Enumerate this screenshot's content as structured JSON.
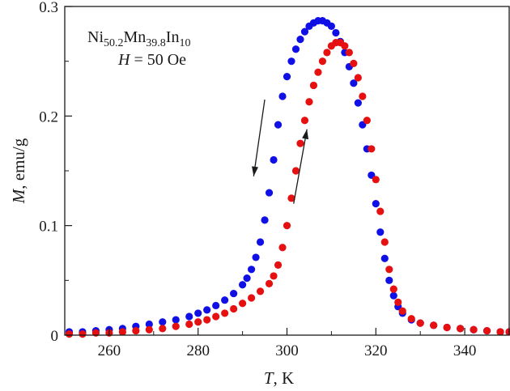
{
  "chart_data": {
    "type": "scatter",
    "xlabel": {
      "symbol": "T",
      "unit": ", K"
    },
    "ylabel": {
      "symbol": "M",
      "unit": ", emu/g"
    },
    "xlim": [
      250,
      350
    ],
    "ylim": [
      0,
      0.3
    ],
    "x_ticks": [
      260,
      280,
      300,
      320,
      340
    ],
    "x_tick_labels": [
      "260",
      "280",
      "300",
      "320",
      "340"
    ],
    "y_ticks": [
      0,
      0.1,
      0.2,
      0.3
    ],
    "y_tick_labels": [
      "0",
      "0.1",
      "0.2",
      "0.3"
    ],
    "grid": false,
    "legend": false,
    "annotation": {
      "formula": [
        {
          "text": "Ni",
          "sub": "50.2"
        },
        {
          "text": "Mn",
          "sub": "39.8"
        },
        {
          "text": "In",
          "sub": "10"
        }
      ],
      "field": {
        "symbol": "H",
        "text": " = 50 Oe"
      }
    },
    "arrows": [
      {
        "direction": "down",
        "x_from": 295,
        "y_from": 0.215,
        "x_to": 292.5,
        "y_to": 0.145
      },
      {
        "direction": "up",
        "x_from": 301.5,
        "y_from": 0.12,
        "x_to": 304.5,
        "y_to": 0.188
      }
    ],
    "series": [
      {
        "color": "#1010e6",
        "points": [
          [
            251,
            0.003
          ],
          [
            254,
            0.003
          ],
          [
            257,
            0.004
          ],
          [
            260,
            0.005
          ],
          [
            263,
            0.006
          ],
          [
            266,
            0.008
          ],
          [
            269,
            0.01
          ],
          [
            272,
            0.012
          ],
          [
            275,
            0.014
          ],
          [
            278,
            0.017
          ],
          [
            280,
            0.02
          ],
          [
            282,
            0.023
          ],
          [
            284,
            0.027
          ],
          [
            286,
            0.032
          ],
          [
            288,
            0.038
          ],
          [
            290,
            0.046
          ],
          [
            291,
            0.052
          ],
          [
            292,
            0.06
          ],
          [
            293,
            0.071
          ],
          [
            294,
            0.085
          ],
          [
            295,
            0.105
          ],
          [
            296,
            0.13
          ],
          [
            297,
            0.16
          ],
          [
            298,
            0.192
          ],
          [
            299,
            0.218
          ],
          [
            300,
            0.236
          ],
          [
            301,
            0.25
          ],
          [
            302,
            0.261
          ],
          [
            303,
            0.27
          ],
          [
            304,
            0.277
          ],
          [
            305,
            0.282
          ],
          [
            306,
            0.285
          ],
          [
            307,
            0.287
          ],
          [
            308,
            0.287
          ],
          [
            309,
            0.285
          ],
          [
            310,
            0.282
          ],
          [
            311,
            0.276
          ],
          [
            312,
            0.268
          ],
          [
            313,
            0.258
          ],
          [
            314,
            0.245
          ],
          [
            315,
            0.23
          ],
          [
            316,
            0.212
          ],
          [
            317,
            0.192
          ],
          [
            318,
            0.17
          ],
          [
            319,
            0.146
          ],
          [
            320,
            0.12
          ],
          [
            321,
            0.094
          ],
          [
            322,
            0.07
          ],
          [
            323,
            0.05
          ],
          [
            324,
            0.036
          ],
          [
            325,
            0.026
          ],
          [
            326,
            0.02
          ],
          [
            328,
            0.014
          ],
          [
            330,
            0.011
          ],
          [
            333,
            0.009
          ],
          [
            336,
            0.007
          ],
          [
            339,
            0.006
          ],
          [
            342,
            0.005
          ],
          [
            345,
            0.004
          ],
          [
            348,
            0.003
          ],
          [
            350,
            0.003
          ]
        ]
      },
      {
        "color": "#e61010",
        "points": [
          [
            251,
            0.001
          ],
          [
            254,
            0.001
          ],
          [
            257,
            0.002
          ],
          [
            260,
            0.002
          ],
          [
            263,
            0.003
          ],
          [
            266,
            0.004
          ],
          [
            269,
            0.005
          ],
          [
            272,
            0.006
          ],
          [
            275,
            0.008
          ],
          [
            278,
            0.01
          ],
          [
            280,
            0.012
          ],
          [
            282,
            0.014
          ],
          [
            284,
            0.017
          ],
          [
            286,
            0.02
          ],
          [
            288,
            0.024
          ],
          [
            290,
            0.029
          ],
          [
            292,
            0.034
          ],
          [
            294,
            0.04
          ],
          [
            296,
            0.047
          ],
          [
            297,
            0.054
          ],
          [
            298,
            0.064
          ],
          [
            299,
            0.08
          ],
          [
            300,
            0.1
          ],
          [
            301,
            0.125
          ],
          [
            302,
            0.15
          ],
          [
            303,
            0.175
          ],
          [
            304,
            0.196
          ],
          [
            305,
            0.213
          ],
          [
            306,
            0.228
          ],
          [
            307,
            0.24
          ],
          [
            308,
            0.25
          ],
          [
            309,
            0.258
          ],
          [
            310,
            0.264
          ],
          [
            311,
            0.267
          ],
          [
            312,
            0.267
          ],
          [
            313,
            0.264
          ],
          [
            314,
            0.258
          ],
          [
            315,
            0.248
          ],
          [
            316,
            0.235
          ],
          [
            317,
            0.218
          ],
          [
            318,
            0.196
          ],
          [
            319,
            0.17
          ],
          [
            320,
            0.142
          ],
          [
            321,
            0.113
          ],
          [
            322,
            0.085
          ],
          [
            323,
            0.06
          ],
          [
            324,
            0.042
          ],
          [
            325,
            0.03
          ],
          [
            326,
            0.022
          ],
          [
            328,
            0.015
          ],
          [
            330,
            0.011
          ],
          [
            333,
            0.009
          ],
          [
            336,
            0.007
          ],
          [
            339,
            0.006
          ],
          [
            342,
            0.005
          ],
          [
            345,
            0.004
          ],
          [
            348,
            0.003
          ],
          [
            350,
            0.003
          ]
        ]
      }
    ]
  }
}
